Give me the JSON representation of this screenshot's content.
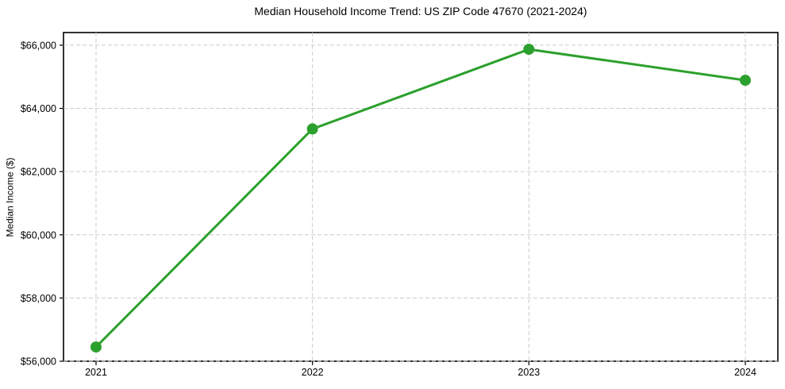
{
  "figure": {
    "background_color": "#ffffff"
  },
  "chart_data": {
    "type": "line",
    "title": "Median Household Income Trend: US ZIP Code 47670 (2021-2024)",
    "xlabel": "",
    "ylabel": "Median Income ($)",
    "categories": [
      "2021",
      "2022",
      "2023",
      "2024"
    ],
    "values": [
      56450,
      63350,
      65870,
      64890
    ],
    "ylim": [
      56000,
      66400
    ],
    "y_ticks": [
      56000,
      58000,
      60000,
      62000,
      64000,
      66000
    ],
    "y_tick_labels": [
      "$56,000",
      "$58,000",
      "$60,000",
      "$62,000",
      "$64,000",
      "$66,000"
    ],
    "grid": true,
    "grid_style": "dashed",
    "legend_position": "none",
    "line_color": "#2ca02c",
    "marker": "circle",
    "grid_color": "#cccccc",
    "spine_color": "#000000",
    "text_color": "#000000"
  }
}
